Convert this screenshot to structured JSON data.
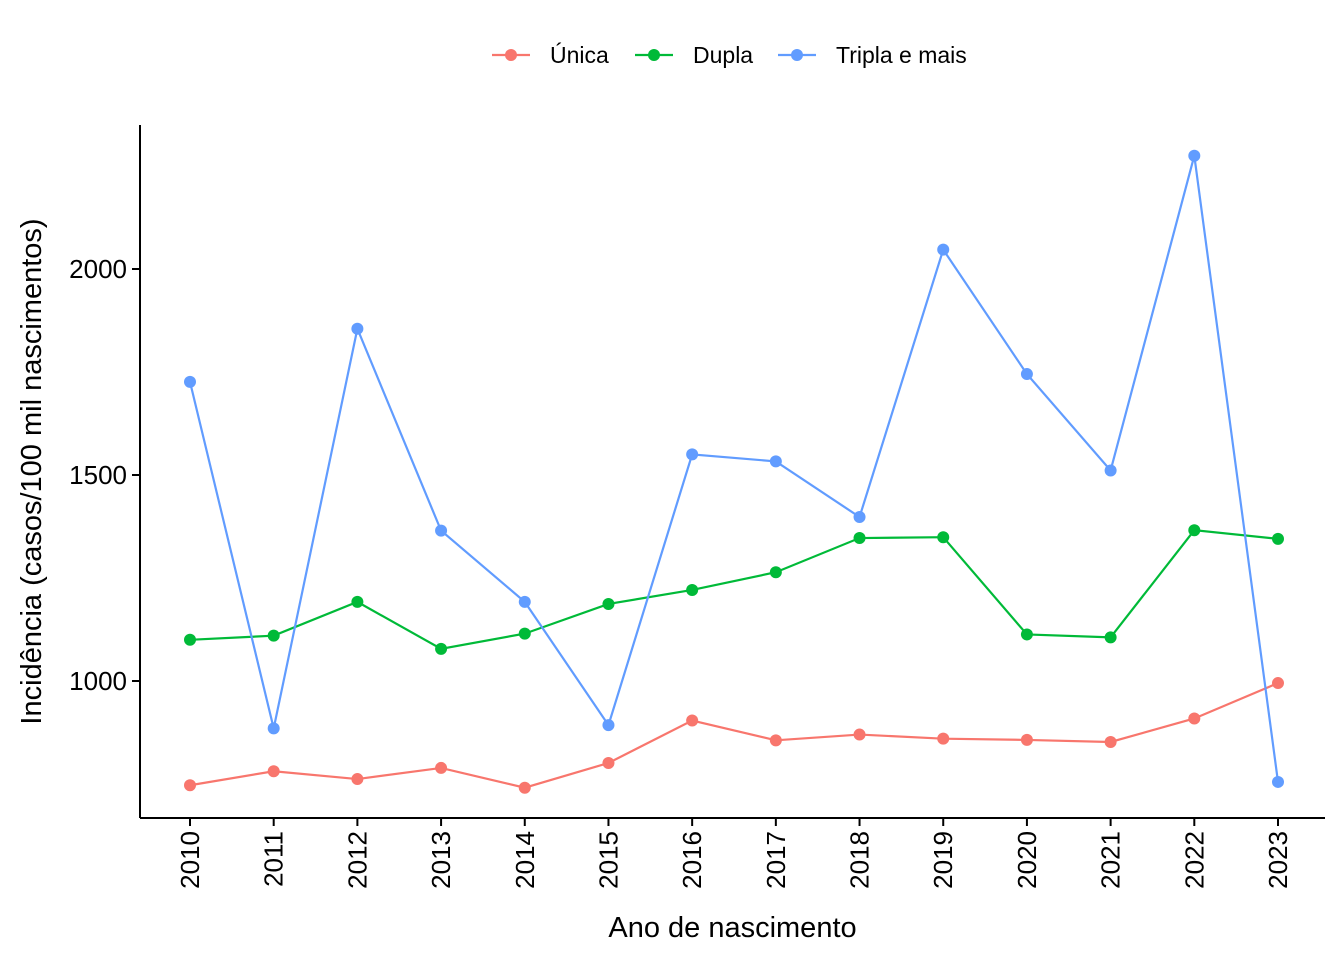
{
  "chart_data": {
    "type": "line",
    "title": "",
    "xlabel": "Ano de nascimento",
    "ylabel": "Incidência (casos/100 mil nascimentos)",
    "x": [
      "2010",
      "2011",
      "2012",
      "2013",
      "2014",
      "2015",
      "2016",
      "2017",
      "2018",
      "2019",
      "2020",
      "2021",
      "2022",
      "2023"
    ],
    "ylim": [
      670,
      2340
    ],
    "yticks": [
      1000,
      1500,
      2000
    ],
    "grid": false,
    "legend_position": "top",
    "series": [
      {
        "name": "Única",
        "color": "#F8766D",
        "values": [
          747,
          781,
          762,
          789,
          741,
          801,
          904,
          856,
          870,
          860,
          857,
          852,
          909,
          995
        ]
      },
      {
        "name": "Dupla",
        "color": "#00BA38",
        "values": [
          1100,
          1110,
          1192,
          1078,
          1115,
          1187,
          1221,
          1264,
          1347,
          1349,
          1113,
          1106,
          1366,
          1345
        ]
      },
      {
        "name": "Tripla e mais",
        "color": "#619CFF",
        "values": [
          1726,
          885,
          1855,
          1365,
          1192,
          893,
          1550,
          1533,
          1398,
          2047,
          1745,
          1511,
          2275,
          755
        ]
      }
    ]
  }
}
